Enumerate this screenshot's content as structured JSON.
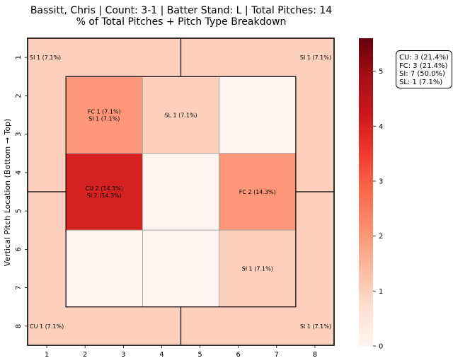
{
  "chart_data": {
    "type": "heatmap",
    "title_line1": "Bassitt, Chris | Count: 3-1 | Batter Stand: L | Total Pitches: 14",
    "title_line2": "% of Total Pitches + Pitch Type Breakdown",
    "ylabel": "Vertical Pitch Location (Bottom → Top)",
    "x_ticks": [
      "1",
      "2",
      "3",
      "4",
      "5",
      "6",
      "7",
      "8"
    ],
    "y_ticks": [
      "1",
      "2",
      "3",
      "4",
      "5",
      "6",
      "7",
      "8"
    ],
    "colorbar": {
      "min": 0,
      "max": 5.6,
      "ticks": [
        "0",
        "1",
        "2",
        "3",
        "4",
        "5"
      ],
      "colormap": "Reds"
    },
    "outer_zones": [
      {
        "zone": "top-left",
        "count": 1,
        "labels": [
          "SI 1 (7.1%)"
        ]
      },
      {
        "zone": "top-right",
        "count": 1,
        "labels": [
          "SI 1 (7.1%)"
        ]
      },
      {
        "zone": "bottom-left",
        "count": 1,
        "labels": [
          "CU 1 (7.1%)"
        ]
      },
      {
        "zone": "bottom-right",
        "count": 1,
        "labels": [
          "SI 1 (7.1%)"
        ]
      }
    ],
    "inner_cells": [
      {
        "row": 0,
        "col": 0,
        "count": 2,
        "labels": [
          "FC 1 (7.1%)",
          "SI 1 (7.1%)"
        ]
      },
      {
        "row": 0,
        "col": 1,
        "count": 1,
        "labels": [
          "SL 1 (7.1%)"
        ]
      },
      {
        "row": 0,
        "col": 2,
        "count": 0,
        "labels": []
      },
      {
        "row": 1,
        "col": 0,
        "count": 4,
        "labels": [
          "CU 2 (14.3%)",
          "SI 2 (14.3%)"
        ]
      },
      {
        "row": 1,
        "col": 1,
        "count": 0,
        "labels": []
      },
      {
        "row": 1,
        "col": 2,
        "count": 2,
        "labels": [
          "FC 2 (14.3%)"
        ]
      },
      {
        "row": 2,
        "col": 0,
        "count": 0,
        "labels": []
      },
      {
        "row": 2,
        "col": 1,
        "count": 0,
        "labels": []
      },
      {
        "row": 2,
        "col": 2,
        "count": 1,
        "labels": [
          "SI 1 (7.1%)"
        ]
      }
    ],
    "summary": [
      "CU: 3 (21.4%)",
      "FC: 3 (21.4%)",
      "SI: 7 (50.0%)",
      "SL: 1 (7.1%)"
    ]
  }
}
